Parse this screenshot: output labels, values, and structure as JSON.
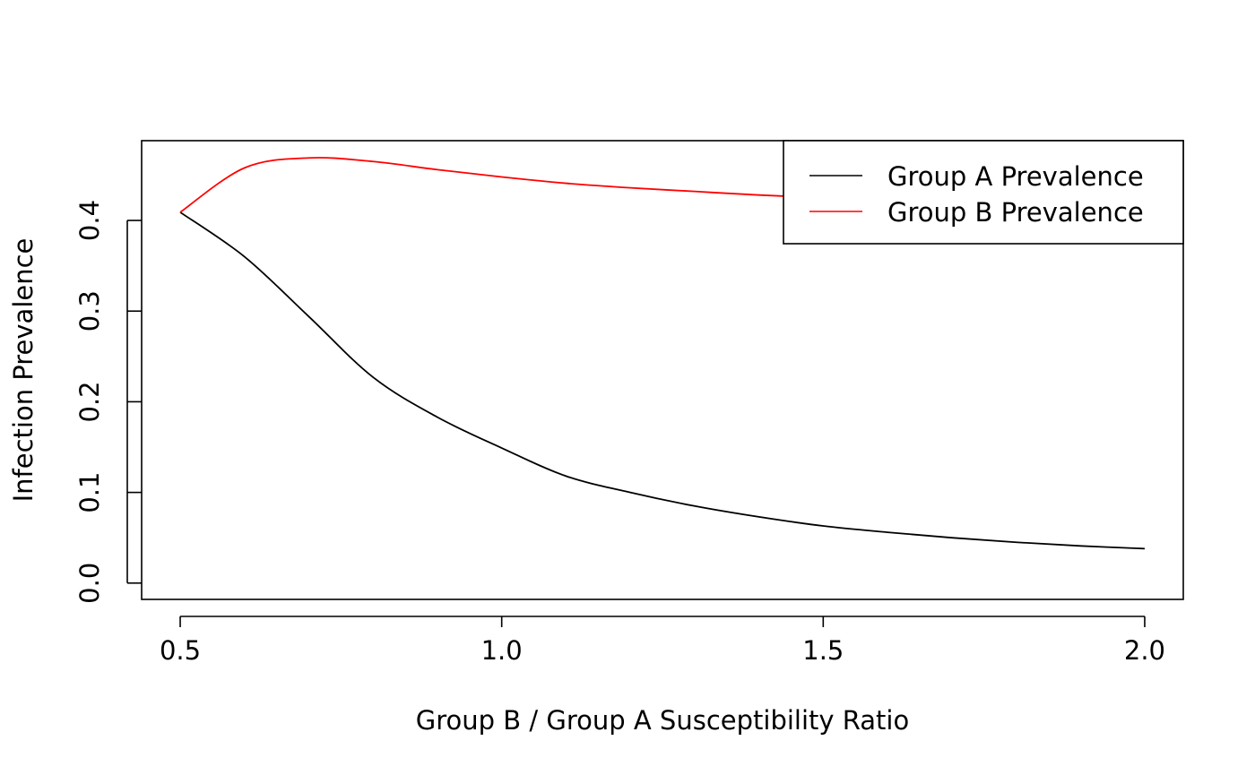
{
  "chart_data": {
    "type": "line",
    "xlabel": "Group B / Group A Susceptibility Ratio",
    "ylabel": "Infection Prevalence",
    "xlim": [
      0.44,
      2.06
    ],
    "ylim": [
      -0.018,
      0.488
    ],
    "x_ticks": [
      0.5,
      1.0,
      1.5,
      2.0
    ],
    "x_tick_labels": [
      "0.5",
      "1.0",
      "1.5",
      "2.0"
    ],
    "y_ticks": [
      0.0,
      0.1,
      0.2,
      0.3,
      0.4
    ],
    "y_tick_labels": [
      "0.0",
      "0.1",
      "0.2",
      "0.3",
      "0.4"
    ],
    "grid": false,
    "legend_position": "top-right",
    "series": [
      {
        "name": "Group A Prevalence",
        "color": "#000000",
        "x": [
          0.5,
          0.6,
          0.7,
          0.8,
          0.9,
          1.0,
          1.1,
          1.2,
          1.3,
          1.4,
          1.5,
          1.6,
          1.7,
          1.8,
          1.9,
          2.0
        ],
        "y": [
          0.409,
          0.36,
          0.294,
          0.227,
          0.183,
          0.149,
          0.118,
          0.1,
          0.085,
          0.073,
          0.063,
          0.056,
          0.05,
          0.045,
          0.041,
          0.038
        ]
      },
      {
        "name": "Group B Prevalence",
        "color": "#ff0000",
        "x": [
          0.5,
          0.6,
          0.7,
          0.8,
          0.9,
          1.0,
          1.1,
          1.2,
          1.3,
          1.4,
          1.5,
          1.6,
          1.7,
          1.8,
          1.9,
          2.0
        ],
        "y": [
          0.409,
          0.458,
          0.469,
          0.465,
          0.456,
          0.448,
          0.441,
          0.436,
          0.432,
          0.428,
          0.425,
          0.423,
          0.421,
          0.42,
          0.419,
          0.418
        ]
      }
    ]
  }
}
